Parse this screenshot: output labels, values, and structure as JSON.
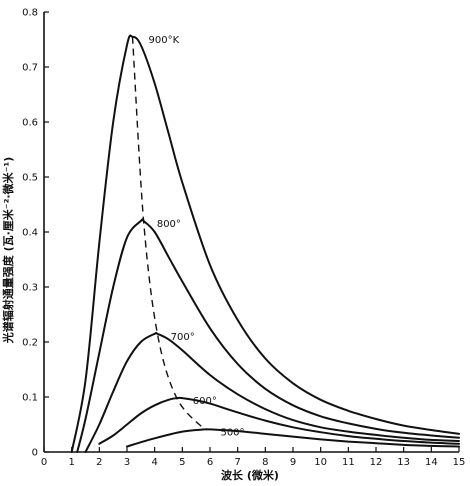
{
  "chart_data": {
    "type": "line",
    "title": "",
    "xlabel": "波长 (微米)",
    "ylabel": "光谱辐射通量强度 (瓦·厘米⁻²·微米⁻¹)",
    "xlim": [
      0,
      15
    ],
    "ylim": [
      0,
      0.8
    ],
    "xticks": [
      "0",
      "1",
      "2",
      "3",
      "4",
      "5",
      "6",
      "7",
      "8",
      "9",
      "10",
      "11",
      "12",
      "13",
      "14",
      "15"
    ],
    "yticks": [
      "0",
      "0.1",
      "0.2",
      "0.3",
      "0.4",
      "0.5",
      "0.6",
      "0.7",
      "0.8"
    ],
    "grid": false,
    "series": [
      {
        "name": "900°K",
        "x": [
          1.0,
          1.5,
          2.0,
          2.5,
          3.0,
          3.2,
          3.5,
          4.0,
          4.5,
          5.0,
          6.0,
          7.0,
          8.0,
          9.0,
          10.0,
          11.0,
          12.0,
          13.0,
          14.0,
          15.0
        ],
        "values": [
          0.0,
          0.13,
          0.38,
          0.6,
          0.74,
          0.755,
          0.74,
          0.67,
          0.58,
          0.49,
          0.34,
          0.24,
          0.17,
          0.125,
          0.095,
          0.075,
          0.06,
          0.048,
          0.04,
          0.033
        ]
      },
      {
        "name": "800°",
        "x": [
          1.2,
          1.5,
          2.0,
          2.5,
          3.0,
          3.5,
          3.6,
          4.0,
          4.5,
          5.0,
          6.0,
          7.0,
          8.0,
          9.0,
          10.0,
          11.0,
          12.0,
          13.0,
          14.0,
          15.0
        ],
        "values": [
          0.0,
          0.06,
          0.18,
          0.3,
          0.39,
          0.42,
          0.42,
          0.4,
          0.355,
          0.31,
          0.225,
          0.16,
          0.115,
          0.085,
          0.065,
          0.052,
          0.042,
          0.035,
          0.03,
          0.026
        ]
      },
      {
        "name": "700°",
        "x": [
          1.5,
          2.0,
          2.5,
          3.0,
          3.5,
          4.0,
          4.1,
          4.5,
          5.0,
          6.0,
          7.0,
          8.0,
          9.0,
          10.0,
          11.0,
          12.0,
          13.0,
          14.0,
          15.0
        ],
        "values": [
          0.0,
          0.05,
          0.11,
          0.165,
          0.2,
          0.215,
          0.215,
          0.205,
          0.185,
          0.14,
          0.105,
          0.078,
          0.058,
          0.045,
          0.037,
          0.031,
          0.026,
          0.022,
          0.02
        ]
      },
      {
        "name": "600°",
        "x": [
          2.0,
          2.5,
          3.0,
          3.5,
          4.0,
          4.5,
          4.8,
          5.0,
          5.5,
          6.0,
          7.0,
          8.0,
          9.0,
          10.0,
          11.0,
          12.0,
          13.0,
          14.0,
          15.0
        ],
        "values": [
          0.015,
          0.03,
          0.05,
          0.07,
          0.085,
          0.095,
          0.098,
          0.098,
          0.094,
          0.088,
          0.072,
          0.057,
          0.045,
          0.036,
          0.029,
          0.024,
          0.02,
          0.017,
          0.015
        ]
      },
      {
        "name": "500°",
        "x": [
          3.0,
          4.0,
          5.0,
          5.8,
          6.0,
          7.0,
          8.0,
          9.0,
          10.0,
          11.0,
          12.0,
          13.0,
          14.0,
          15.0
        ],
        "values": [
          0.01,
          0.025,
          0.037,
          0.041,
          0.041,
          0.038,
          0.033,
          0.028,
          0.023,
          0.019,
          0.016,
          0.013,
          0.011,
          0.01
        ]
      }
    ],
    "peak_locus": {
      "x": [
        3.2,
        3.6,
        4.1,
        4.8,
        5.8
      ],
      "values": [
        0.755,
        0.42,
        0.215,
        0.098,
        0.041
      ]
    },
    "annotations": [
      "900°K",
      "800°",
      "700°",
      "600°",
      "500°"
    ]
  }
}
